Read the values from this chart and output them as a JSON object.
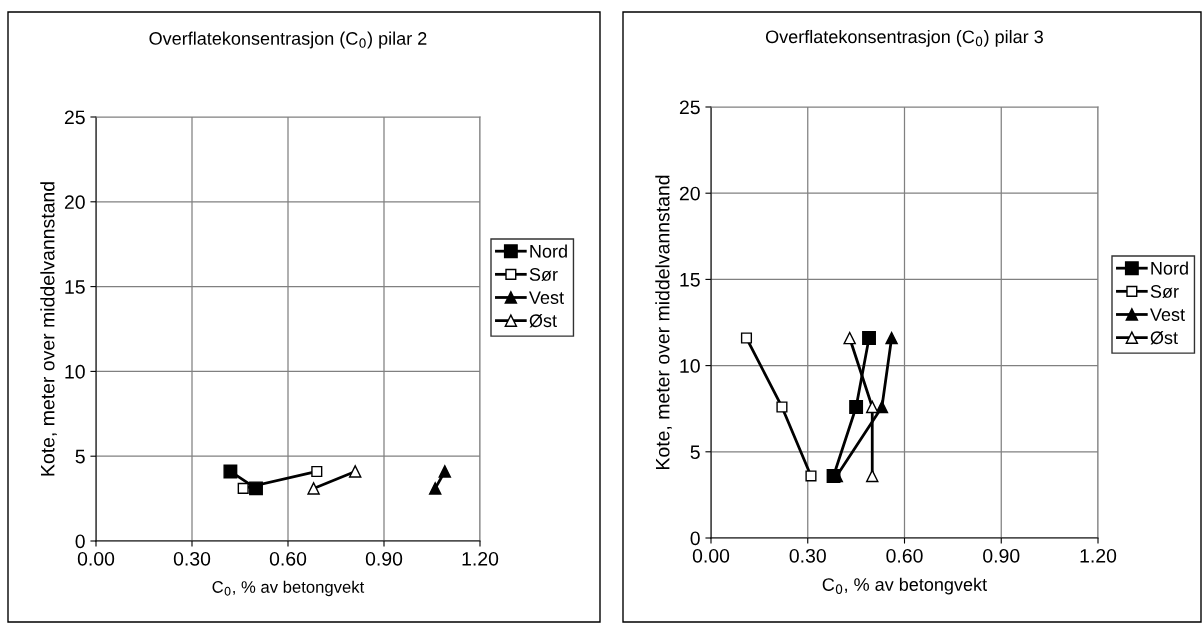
{
  "chart_data": [
    {
      "type": "line",
      "title": "Overflatekonsentrasjon (C$_{0}$) pilar 2",
      "xlabel": "C$_{0}$, % av betongvekt",
      "ylabel": "Kote, meter over middelvannstand",
      "xlim": [
        0,
        1.2
      ],
      "xticks": [
        {
          "value": 0,
          "label": "0.00"
        },
        {
          "value": 0.3,
          "label": "0.30"
        },
        {
          "value": 0.6,
          "label": "0.60"
        },
        {
          "value": 0.9,
          "label": "0.90"
        },
        {
          "value": 1.2,
          "label": "1.20"
        }
      ],
      "ylim": [
        0,
        25
      ],
      "yticks": [
        0,
        5,
        10,
        15,
        20,
        25
      ],
      "grid": true,
      "legend": "right",
      "series": [
        {
          "name": "Nord",
          "color": "#000000",
          "marker": "square",
          "x": [
            0.42,
            0.5
          ],
          "values": [
            4.1,
            3.1
          ]
        },
        {
          "name": "Sør",
          "color": "#000000",
          "marker": "square",
          "x": [
            0.46,
            0.69
          ],
          "values": [
            3.1,
            4.1
          ]
        },
        {
          "name": "Vest",
          "color": "#000000",
          "marker": "triangle",
          "x": [
            1.06,
            1.09
          ],
          "values": [
            3.1,
            4.1
          ]
        },
        {
          "name": "Øst",
          "color": "#000000",
          "marker": "triangle",
          "x": [
            0.68,
            0.81
          ],
          "values": [
            3.1,
            4.1
          ]
        }
      ]
    },
    {
      "type": "line",
      "title": "Overflatekonsentrasjon (C$_{0}$) pilar 3",
      "xlabel": "C$_{0}$, % av betongvekt",
      "ylabel": "Kote, meter over middelvannstand",
      "xlim": [
        0,
        1.2
      ],
      "xticks": [
        {
          "value": 0,
          "label": "0.00"
        },
        {
          "value": 0.3,
          "label": "0.30"
        },
        {
          "value": 0.6,
          "label": "0.60"
        },
        {
          "value": 0.9,
          "label": "0.90"
        },
        {
          "value": 1.2,
          "label": "1.20"
        }
      ],
      "ylim": [
        0,
        25
      ],
      "yticks": [
        0,
        5,
        10,
        15,
        20,
        25
      ],
      "grid": true,
      "legend": "right",
      "series": [
        {
          "name": "Nord",
          "color": "#000000",
          "marker": "square",
          "x": [
            0.49,
            0.45,
            0.38
          ],
          "values": [
            11.6,
            7.6,
            3.6
          ]
        },
        {
          "name": "Sør",
          "color": "#000000",
          "marker": "square",
          "x": [
            0.11,
            0.22,
            0.31
          ],
          "values": [
            11.6,
            7.6,
            3.6
          ]
        },
        {
          "name": "Vest",
          "color": "#000000",
          "marker": "triangle",
          "x": [
            0.56,
            0.53,
            0.39
          ],
          "values": [
            11.6,
            7.6,
            3.6
          ]
        },
        {
          "name": "Øst",
          "color": "#000000",
          "marker": "triangle",
          "x": [
            0.43,
            0.5,
            0.5
          ],
          "values": [
            11.6,
            7.6,
            3.6
          ]
        }
      ]
    }
  ]
}
